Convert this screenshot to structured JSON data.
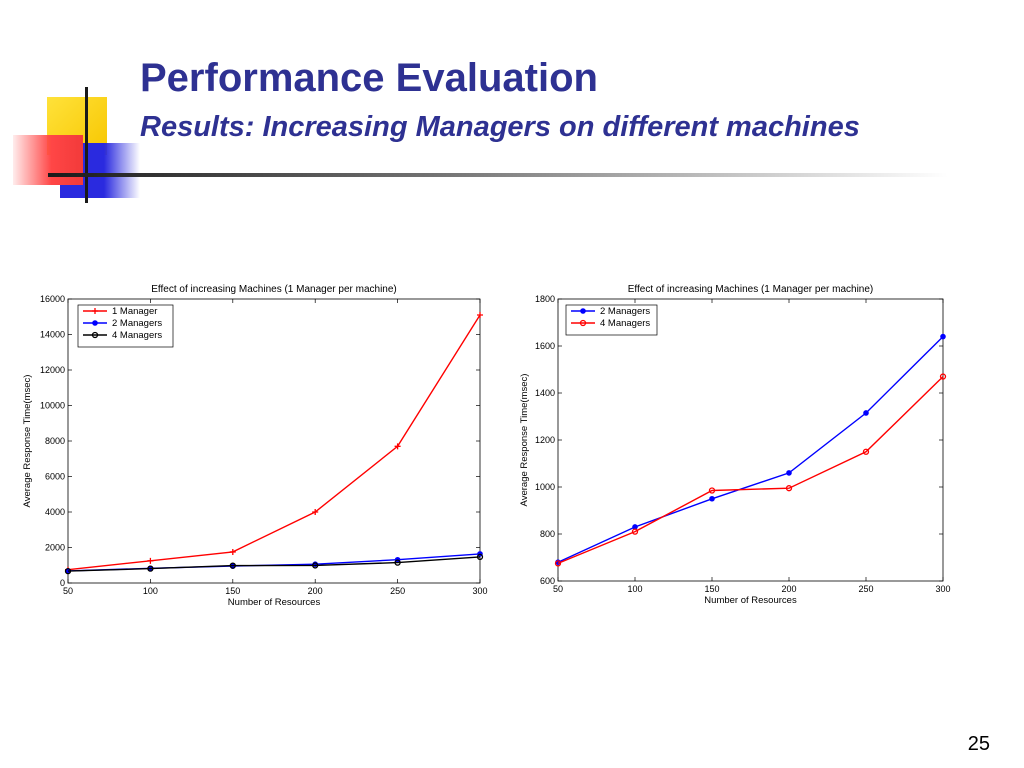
{
  "slide": {
    "title": "Performance Evaluation",
    "subtitle": "Results: Increasing Managers on different machines",
    "page_number": "25"
  },
  "chart_data": [
    {
      "type": "line",
      "title": "Effect of increasing Machines (1 Manager per machine)",
      "xlabel": "Number of Resources",
      "ylabel": "Average Response Time(msec)",
      "x": [
        50,
        100,
        150,
        200,
        250,
        300
      ],
      "xlim": [
        50,
        300
      ],
      "ylim": [
        0,
        16000
      ],
      "xticks": [
        "50",
        "100",
        "150",
        "200",
        "250",
        "300"
      ],
      "yticks": [
        "0",
        "2000",
        "4000",
        "6000",
        "8000",
        "10000",
        "12000",
        "14000",
        "16000"
      ],
      "grid": false,
      "legend_position": "top-left",
      "series": [
        {
          "name": "1 Manager",
          "color": "#ff0000",
          "marker": "plus",
          "values": [
            750,
            1250,
            1750,
            4000,
            7700,
            15100
          ]
        },
        {
          "name": "2 Managers",
          "color": "#0000ff",
          "marker": "dot",
          "values": [
            680,
            830,
            950,
            1060,
            1310,
            1640
          ]
        },
        {
          "name": "4 Managers",
          "color": "#000000",
          "marker": "circle",
          "values": [
            670,
            810,
            980,
            990,
            1150,
            1470
          ]
        }
      ]
    },
    {
      "type": "line",
      "title": "Effect of increasing Machines (1 Manager per machine)",
      "xlabel": "Number of Resources",
      "ylabel": "Average Response Time(msec)",
      "x": [
        50,
        100,
        150,
        200,
        250,
        300
      ],
      "xlim": [
        50,
        300
      ],
      "ylim": [
        600,
        1800
      ],
      "xticks": [
        "50",
        "100",
        "150",
        "200",
        "250",
        "300"
      ],
      "yticks": [
        "600",
        "800",
        "1000",
        "1200",
        "1400",
        "1600",
        "1800"
      ],
      "grid": false,
      "legend_position": "top-left",
      "series": [
        {
          "name": "2 Managers",
          "color": "#0000ff",
          "marker": "dot",
          "values": [
            680,
            830,
            950,
            1060,
            1315,
            1640
          ]
        },
        {
          "name": "4 Managers",
          "color": "#ff0000",
          "marker": "circle",
          "values": [
            675,
            810,
            985,
            995,
            1150,
            1470
          ]
        }
      ]
    }
  ]
}
